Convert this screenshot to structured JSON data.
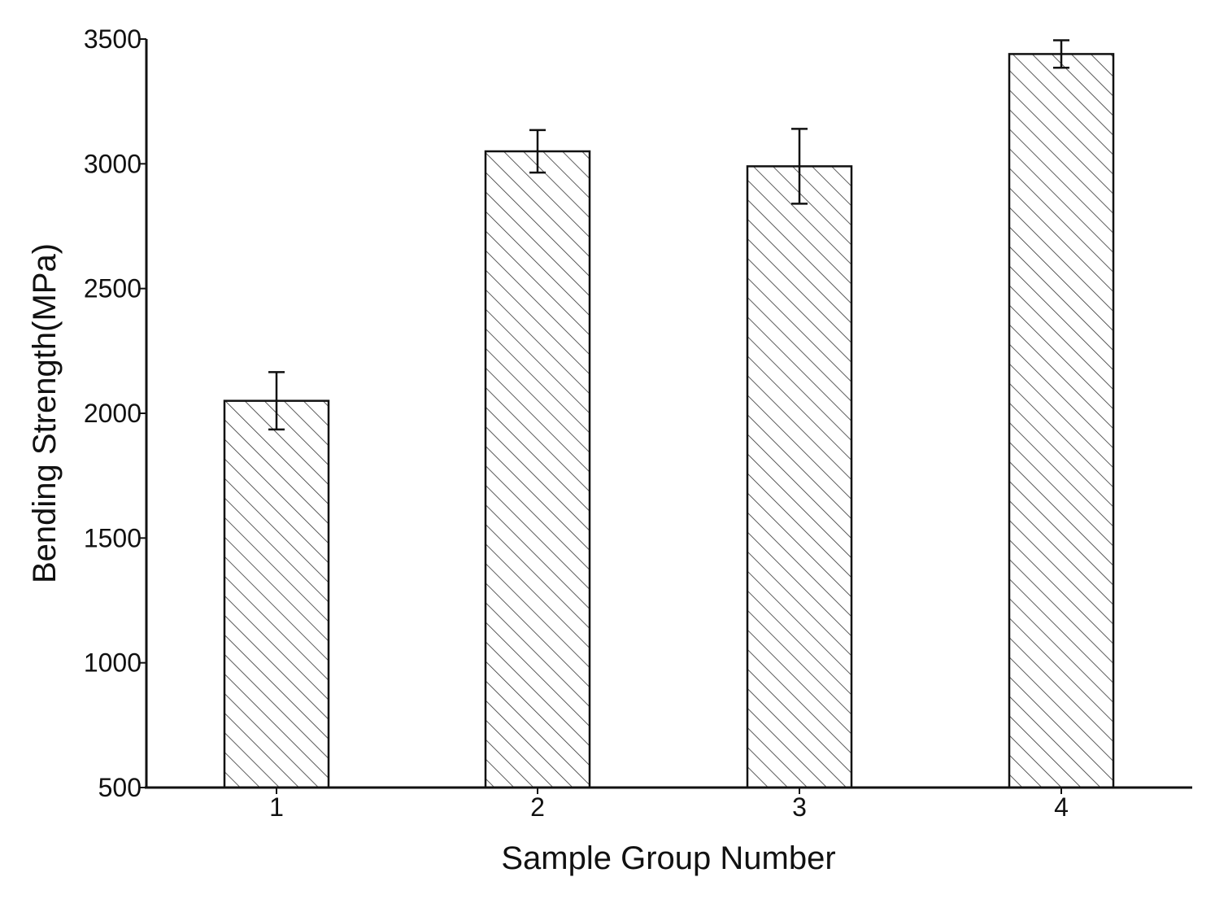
{
  "chart_data": {
    "type": "bar",
    "title": "",
    "xlabel": "Sample Group Number",
    "ylabel": "Bending Strength(MPa)",
    "categories": [
      "1",
      "2",
      "3",
      "4"
    ],
    "values": [
      2050,
      3050,
      2990,
      3440
    ],
    "error": [
      115,
      85,
      150,
      55
    ],
    "ylim": [
      500,
      3500
    ],
    "yticks": [
      500,
      1000,
      1500,
      2000,
      2500,
      3000,
      3500
    ],
    "ytick_labels": [
      "500",
      "1000",
      "1500",
      "2000",
      "2500",
      "3000",
      "3500"
    ],
    "grid": false,
    "legend": "none",
    "bar_fill": "diagonal-hatch",
    "colors": {
      "bar_edge": "#111111",
      "hatch": "#333333",
      "axis": "#111111"
    }
  }
}
